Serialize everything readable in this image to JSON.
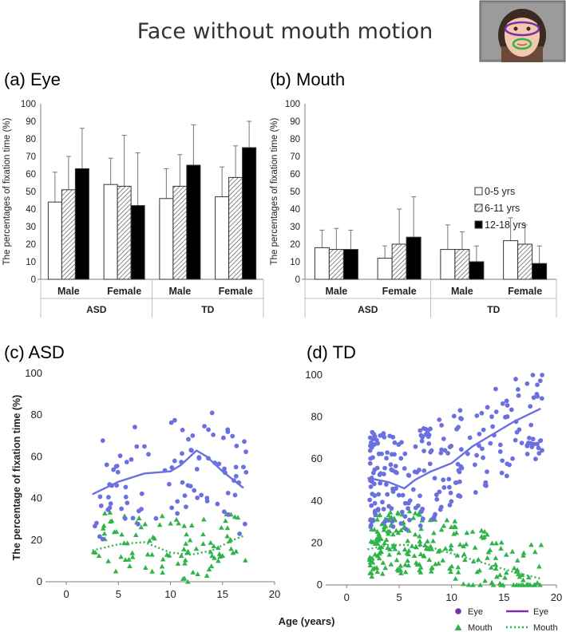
{
  "figure_title": "Face without mouth motion",
  "colors": {
    "eye": "#6b70e0",
    "mouth": "#2fb44a",
    "eye_legend": "#7a2fa8",
    "bar_black": "#000000",
    "axis": "#7f7f7f"
  },
  "chart_data": [
    {
      "id": "a",
      "type": "bar",
      "panel_label": "(a) Eye",
      "ylabel": "The percentages of fixation time (%)",
      "ylim": [
        0,
        100
      ],
      "yticks": [
        0,
        10,
        20,
        30,
        40,
        50,
        60,
        70,
        80,
        90,
        100
      ],
      "groups": [
        "ASD",
        "TD"
      ],
      "categories": [
        "Male",
        "Female",
        "Male",
        "Female"
      ],
      "legend": [
        "0-5 yrs",
        "6-11 yrs",
        "12-18 yrs"
      ],
      "series": [
        {
          "name": "0-5 yrs",
          "values": [
            44,
            54,
            46,
            47
          ],
          "errors": [
            17,
            15,
            17,
            17
          ]
        },
        {
          "name": "6-11 yrs",
          "values": [
            51,
            53,
            53,
            58
          ],
          "errors": [
            19,
            29,
            18,
            18
          ]
        },
        {
          "name": "12-18 yrs",
          "values": [
            63,
            42,
            65,
            75
          ],
          "errors": [
            23,
            30,
            23,
            15
          ]
        }
      ]
    },
    {
      "id": "b",
      "type": "bar",
      "panel_label": "(b) Mouth",
      "ylabel": "The percentages of fixation time (%)",
      "ylim": [
        0,
        100
      ],
      "yticks": [
        0,
        10,
        20,
        30,
        40,
        50,
        60,
        70,
        80,
        90,
        100
      ],
      "groups": [
        "ASD",
        "TD"
      ],
      "categories": [
        "Male",
        "Female",
        "Male",
        "Female"
      ],
      "legend": [
        "0-5 yrs",
        "6-11 yrs",
        "12-18 yrs"
      ],
      "series": [
        {
          "name": "0-5 yrs",
          "values": [
            18,
            12,
            17,
            22
          ],
          "errors": [
            10,
            7,
            14,
            13
          ]
        },
        {
          "name": "6-11 yrs",
          "values": [
            17,
            20,
            17,
            20
          ],
          "errors": [
            12,
            20,
            10,
            11
          ]
        },
        {
          "name": "12-18 yrs",
          "values": [
            17,
            24,
            10,
            9
          ],
          "errors": [
            11,
            23,
            9,
            10
          ]
        }
      ]
    },
    {
      "id": "c",
      "type": "scatter",
      "panel_label": "(c) ASD",
      "ylabel": "The percentage of fixation time (%)",
      "xlim": [
        -2,
        20
      ],
      "ylim": [
        0,
        100
      ],
      "xticks": [
        0,
        5,
        10,
        15,
        20
      ],
      "yticks": [
        0,
        20,
        40,
        60,
        80,
        100
      ],
      "eye_trend": [
        [
          2.5,
          42
        ],
        [
          5,
          48
        ],
        [
          7.5,
          52
        ],
        [
          10,
          53
        ],
        [
          11,
          56
        ],
        [
          12.5,
          63
        ],
        [
          13.5,
          60
        ],
        [
          15,
          53
        ],
        [
          17,
          45
        ]
      ],
      "mouth_trend": [
        [
          2.5,
          15
        ],
        [
          5,
          18
        ],
        [
          7.5,
          19
        ],
        [
          10,
          14
        ],
        [
          12,
          13
        ],
        [
          14,
          15
        ],
        [
          16,
          20
        ],
        [
          17,
          22
        ]
      ]
    },
    {
      "id": "d",
      "type": "scatter",
      "panel_label": "(d) TD",
      "xlabel": "Age (years)",
      "xlim": [
        -2,
        20
      ],
      "ylim": [
        0,
        100
      ],
      "xticks": [
        0,
        5,
        10,
        15,
        20
      ],
      "yticks": [
        0,
        20,
        40,
        60,
        80,
        100
      ],
      "eye_trend": [
        [
          2,
          51
        ],
        [
          4,
          49
        ],
        [
          5.5,
          46
        ],
        [
          6.5,
          50
        ],
        [
          8,
          54
        ],
        [
          10,
          58
        ],
        [
          12,
          66
        ],
        [
          14,
          72
        ],
        [
          16,
          78
        ],
        [
          18.5,
          84
        ]
      ],
      "mouth_trend": [
        [
          2,
          17
        ],
        [
          4,
          19
        ],
        [
          6,
          19
        ],
        [
          8,
          18
        ],
        [
          10,
          15
        ],
        [
          12,
          12
        ],
        [
          14,
          9
        ],
        [
          16,
          6
        ],
        [
          18.5,
          3
        ]
      ],
      "legend": {
        "eye_points": "Eye",
        "eye_line": "Eye",
        "mouth_points": "Mouth",
        "mouth_line": "Mouth"
      }
    }
  ]
}
